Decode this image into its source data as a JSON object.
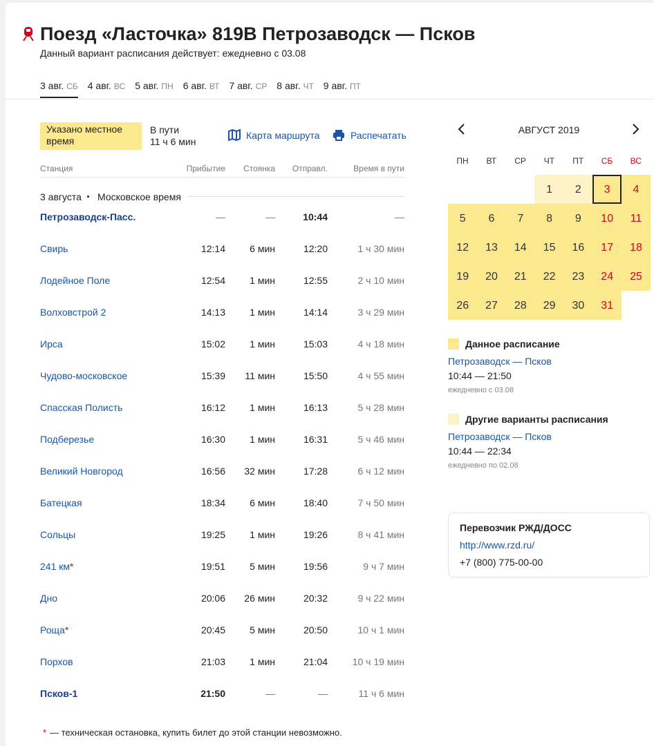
{
  "header": {
    "title": "Поезд «Ласточка» 819В Петрозаводск — Псков",
    "subtitle": "Данный вариант расписания действует: ежедневно с 03.08"
  },
  "tabs": [
    {
      "date": "3 авг.",
      "day": "СБ"
    },
    {
      "date": "4 авг.",
      "day": "ВС"
    },
    {
      "date": "5 авг.",
      "day": "ПН"
    },
    {
      "date": "6 авг.",
      "day": "ВТ"
    },
    {
      "date": "7 авг.",
      "day": "СР"
    },
    {
      "date": "8 авг.",
      "day": "ЧТ"
    },
    {
      "date": "9 авг.",
      "day": "ПТ"
    }
  ],
  "info": {
    "notice": "Указано местное время",
    "travel_label": "В пути",
    "travel_value": "11 ч 6 мин",
    "map_link": "Карта маршрута",
    "print_link": "Распечатать"
  },
  "table": {
    "headers": [
      "Станция",
      "Прибытие",
      "Стоянка",
      "Отправл.",
      "Время в пути"
    ],
    "section": {
      "date": "3 августа",
      "zone": "Московское время"
    },
    "rows": [
      {
        "station": "Петрозаводск-Пасс.",
        "arr": "—",
        "stop": "—",
        "dep": "10:44",
        "travel": "—"
      },
      {
        "station": "Свирь",
        "arr": "12:14",
        "stop": "6 мин",
        "dep": "12:20",
        "travel": "1 ч 30 мин"
      },
      {
        "station": "Лодейное Поле",
        "arr": "12:54",
        "stop": "1 мин",
        "dep": "12:55",
        "travel": "2 ч 10 мин"
      },
      {
        "station": "Волховстрой 2",
        "arr": "14:13",
        "stop": "1 мин",
        "dep": "14:14",
        "travel": "3 ч 29 мин"
      },
      {
        "station": "Ирса",
        "arr": "15:02",
        "stop": "1 мин",
        "dep": "15:03",
        "travel": "4 ч 18 мин"
      },
      {
        "station": "Чудово-московское",
        "arr": "15:39",
        "stop": "11 мин",
        "dep": "15:50",
        "travel": "4 ч 55 мин"
      },
      {
        "station": "Спасская Полисть",
        "arr": "16:12",
        "stop": "1 мин",
        "dep": "16:13",
        "travel": "5 ч 28 мин"
      },
      {
        "station": "Подберезье",
        "arr": "16:30",
        "stop": "1 мин",
        "dep": "16:31",
        "travel": "5 ч 46 мин"
      },
      {
        "station": "Великий Новгород",
        "arr": "16:56",
        "stop": "32 мин",
        "dep": "17:28",
        "travel": "6 ч 12 мин"
      },
      {
        "station": "Батецкая",
        "arr": "18:34",
        "stop": "6 мин",
        "dep": "18:40",
        "travel": "7 ч 50 мин"
      },
      {
        "station": "Сольцы",
        "arr": "19:25",
        "stop": "1 мин",
        "dep": "19:26",
        "travel": "8 ч 41 мин"
      },
      {
        "station": "241 км",
        "mark": "*",
        "arr": "19:51",
        "stop": "5 мин",
        "dep": "19:56",
        "travel": "9 ч 7 мин"
      },
      {
        "station": "Дно",
        "arr": "20:06",
        "stop": "26 мин",
        "dep": "20:32",
        "travel": "9 ч 22 мин"
      },
      {
        "station": "Роща",
        "mark": "*",
        "arr": "20:45",
        "stop": "5 мин",
        "dep": "20:50",
        "travel": "10 ч 1 мин"
      },
      {
        "station": "Порхов",
        "arr": "21:03",
        "stop": "1 мин",
        "dep": "21:04",
        "travel": "10 ч 19 мин"
      },
      {
        "station": "Псков-1",
        "arr": "21:50",
        "stop": "—",
        "dep": "—",
        "travel": "11 ч 6 мин"
      }
    ],
    "footnote_mark": "*",
    "footnote": "— техническая остановка, купить билет до этой станции невозможно."
  },
  "calendar": {
    "month": "АВГУСТ 2019",
    "weekdays": [
      {
        "label": "ПН",
        "color": "#333"
      },
      {
        "label": "ВТ",
        "color": "#333"
      },
      {
        "label": "СР",
        "color": "#333"
      },
      {
        "label": "ЧТ",
        "color": "#333"
      },
      {
        "label": "ПТ",
        "color": "#333"
      },
      {
        "label": "СБ",
        "color": "#d0021b"
      },
      {
        "label": "ВС",
        "color": "#d0021b"
      }
    ],
    "weeks": [
      [
        null,
        null,
        null,
        {
          "day": 1,
          "color": "#fdf3c6"
        },
        {
          "day": 2,
          "color": "#fdf3c6"
        },
        {
          "day": 3,
          "color": "#fce98f",
          "selected": true
        },
        {
          "day": 4,
          "color": "#fce98f"
        }
      ],
      [
        {
          "day": 5,
          "color": "#fce98f"
        },
        {
          "day": 6,
          "color": "#fce98f"
        },
        {
          "day": 7,
          "color": "#fce98f"
        },
        {
          "day": 8,
          "color": "#fce98f"
        },
        {
          "day": 9,
          "color": "#fce98f"
        },
        {
          "day": 10,
          "color": "#fce98f"
        },
        {
          "day": 11,
          "color": "#fce98f"
        }
      ],
      [
        {
          "day": 12,
          "color": "#fce98f"
        },
        {
          "day": 13,
          "color": "#fce98f"
        },
        {
          "day": 14,
          "color": "#fce98f"
        },
        {
          "day": 15,
          "color": "#fce98f"
        },
        {
          "day": 16,
          "color": "#fce98f"
        },
        {
          "day": 17,
          "color": "#fce98f"
        },
        {
          "day": 18,
          "color": "#fce98f"
        }
      ],
      [
        {
          "day": 19,
          "color": "#fce98f"
        },
        {
          "day": 20,
          "color": "#fce98f"
        },
        {
          "day": 21,
          "color": "#fce98f"
        },
        {
          "day": 22,
          "color": "#fce98f"
        },
        {
          "day": 23,
          "color": "#fce98f"
        },
        {
          "day": 24,
          "color": "#fce98f"
        },
        {
          "day": 25,
          "color": "#fce98f"
        }
      ],
      [
        {
          "day": 26,
          "color": "#fce98f"
        },
        {
          "day": 27,
          "color": "#fce98f"
        },
        {
          "day": 28,
          "color": "#fce98f"
        },
        {
          "day": 29,
          "color": "#fce98f"
        },
        {
          "day": 30,
          "color": "#fce98f"
        },
        {
          "day": 31,
          "color": "#fce98f"
        },
        null
      ]
    ],
    "legend": [
      {
        "label": "Данное расписание",
        "color": "#fce98f",
        "route": "Петрозаводск — Псков",
        "time": "10:44 — 21:50",
        "note": "ежедневно с 03.08"
      },
      {
        "label": "Другие варианты расписания",
        "color": "#fdf3c6",
        "route": "Петрозаводск — Псков",
        "time": "10:44 — 22:34",
        "note": "ежедневно по 02.08"
      }
    ]
  },
  "carrier": {
    "title": "Перевозчик РЖД/ДОСС",
    "link": "http://www.rzd.ru/",
    "phone": "+7 (800) 775-00-00"
  }
}
